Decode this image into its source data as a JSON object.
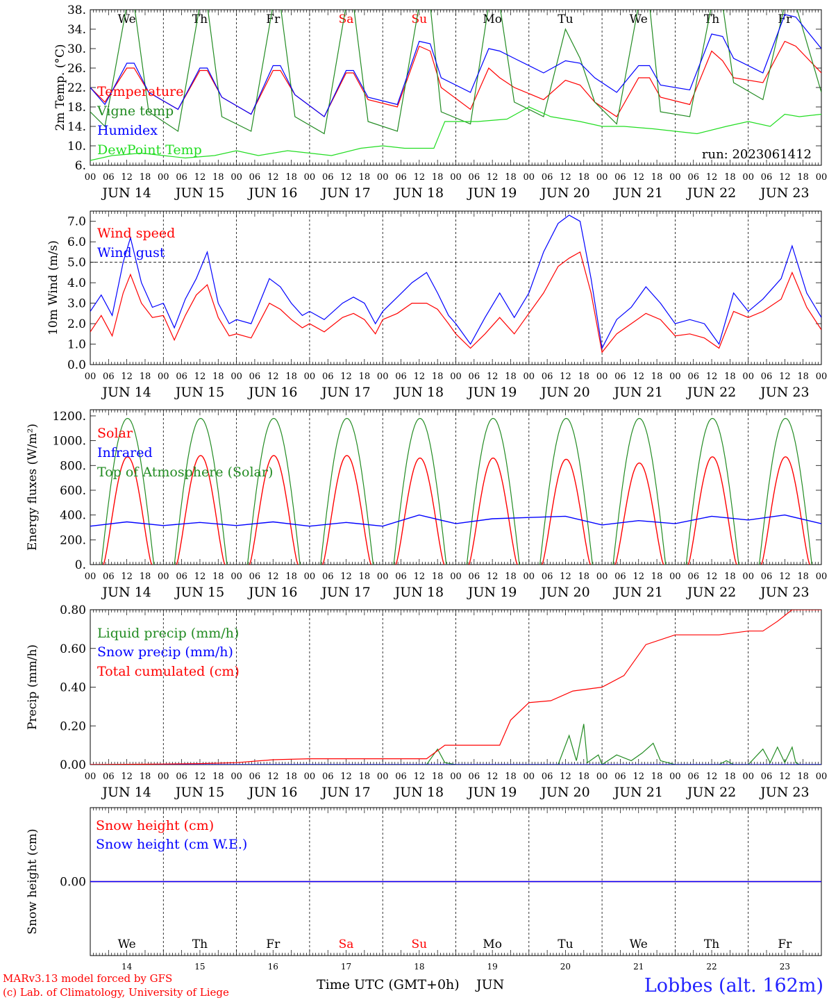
{
  "colors": {
    "temperature": "#ff0000",
    "vigne": "#228b22",
    "humidex": "#0000ff",
    "dewpoint": "#22dd22",
    "weekend": "#ff0000",
    "weekday": "#000000"
  },
  "x_axis": {
    "hour_labels": [
      "00",
      "06",
      "12",
      "18"
    ],
    "end_label": "00",
    "dates": [
      "JUN 14",
      "JUN 15",
      "JUN 16",
      "JUN 17",
      "JUN 18",
      "JUN 19",
      "JUN 20",
      "JUN 21",
      "JUN 22",
      "JUN 23"
    ],
    "weekdays": [
      "We",
      "Th",
      "Fr",
      "Sa",
      "Su",
      "Mo",
      "Tu",
      "We",
      "Th",
      "Fr"
    ],
    "weekend_days": [
      "Sa",
      "Su"
    ],
    "day_numbers": [
      "14",
      "15",
      "16",
      "17",
      "18",
      "19",
      "20",
      "21",
      "22",
      "23"
    ],
    "time_label": "Time UTC (GMT+0h)",
    "month_label": "JUN"
  },
  "footer": {
    "credit_line1": "MARv3.13 model forced by GFS",
    "credit_line2": "(c) Lab. of Climatology, University of Liege",
    "location": "Lobbes (alt. 162m)"
  },
  "chart_data": [
    {
      "type": "line",
      "ylabel": "2m Temp. (°C)",
      "ylim": [
        6,
        38
      ],
      "yticks": [
        "6.",
        "10.",
        "14.",
        "18.",
        "22.",
        "26.",
        "30.",
        "34.",
        "38."
      ],
      "annotation": "run: 2023061412",
      "x_unit": "days since JUN 14 00 UTC",
      "series": [
        {
          "name": "Temperature",
          "color": "#ff0000",
          "x": [
            0,
            0.2,
            0.5,
            0.6,
            0.8,
            1.2,
            1.5,
            1.6,
            1.8,
            2.2,
            2.5,
            2.6,
            2.8,
            3.2,
            3.5,
            3.6,
            3.8,
            4.2,
            4.5,
            4.65,
            4.8,
            5.2,
            5.45,
            5.6,
            5.8,
            6.2,
            6.5,
            6.7,
            6.9,
            7.2,
            7.5,
            7.65,
            7.8,
            8.2,
            8.5,
            8.65,
            8.8,
            9.2,
            9.5,
            9.65,
            10
          ],
          "y": [
            22,
            19,
            26,
            26,
            21,
            17.5,
            25.5,
            25.5,
            20,
            16.5,
            25.5,
            25.5,
            20.5,
            16,
            25,
            25,
            19.5,
            18,
            30.5,
            29.5,
            22,
            17.5,
            26,
            24,
            22,
            19.5,
            23.5,
            22.5,
            19,
            16,
            24,
            24,
            20,
            18.5,
            29.5,
            27.5,
            24,
            23,
            31.5,
            30.5,
            25
          ]
        },
        {
          "name": "Vigne temp",
          "color": "#228b22",
          "x": [
            0,
            0.2,
            0.5,
            0.6,
            0.8,
            1.2,
            1.5,
            1.6,
            1.8,
            2.2,
            2.5,
            2.6,
            2.8,
            3.2,
            3.5,
            3.6,
            3.8,
            4.2,
            4.5,
            4.65,
            4.8,
            5.2,
            5.45,
            5.6,
            5.8,
            6.2,
            6.5,
            6.7,
            6.9,
            7.2,
            7.5,
            7.65,
            7.8,
            8.2,
            8.5,
            8.65,
            8.8,
            9.2,
            9.5,
            9.65,
            10
          ],
          "y": [
            17,
            14,
            39,
            39,
            17,
            13,
            39,
            39,
            16,
            13,
            39,
            39,
            16,
            12.5,
            39,
            39,
            15,
            13,
            39,
            39,
            17,
            14.5,
            39,
            39,
            19,
            16,
            34,
            28,
            19,
            14.5,
            39,
            39,
            17,
            16,
            39,
            39,
            23,
            19.5,
            39,
            39,
            21
          ]
        },
        {
          "name": "Humidex",
          "color": "#0000ff",
          "x": [
            0,
            0.2,
            0.5,
            0.6,
            0.8,
            1.2,
            1.5,
            1.6,
            1.8,
            2.2,
            2.5,
            2.6,
            2.8,
            3.2,
            3.5,
            3.6,
            3.8,
            4.2,
            4.5,
            4.65,
            4.8,
            5.2,
            5.45,
            5.6,
            5.8,
            6.2,
            6.5,
            6.7,
            6.9,
            7.2,
            7.5,
            7.65,
            7.8,
            8.2,
            8.5,
            8.65,
            8.8,
            9.2,
            9.5,
            9.65,
            10
          ],
          "y": [
            22,
            18.5,
            27,
            27,
            21,
            17.5,
            26,
            26,
            20,
            16.5,
            26.5,
            26.5,
            20.5,
            16,
            25.5,
            25.5,
            20,
            18.5,
            31.5,
            31,
            24,
            21,
            30,
            29.5,
            28,
            25,
            27.5,
            27,
            24,
            21,
            26.5,
            26.5,
            22.5,
            21.5,
            33,
            32.5,
            28,
            25,
            37,
            36.5,
            30
          ]
        },
        {
          "name": "DewPoint Temp",
          "color": "#22dd22",
          "x": [
            0,
            0.3,
            0.7,
            1,
            1.3,
            1.7,
            2,
            2.3,
            2.7,
            3,
            3.3,
            3.7,
            4,
            4.3,
            4.7,
            4.85,
            5,
            5.3,
            5.7,
            6,
            6.3,
            6.7,
            7,
            7.3,
            7.7,
            8,
            8.3,
            8.7,
            9,
            9.3,
            9.5,
            9.7,
            10
          ],
          "y": [
            7,
            8,
            8.5,
            8,
            7.5,
            8,
            9,
            8,
            9,
            8.5,
            8,
            9.5,
            10,
            9.5,
            9.5,
            15,
            15,
            15,
            15.5,
            18,
            16,
            15,
            14,
            14,
            13.5,
            13,
            12.5,
            14,
            15,
            14,
            16.5,
            16,
            16.5
          ]
        }
      ]
    },
    {
      "type": "line",
      "ylabel": "10m Wind (m/s)",
      "ylim": [
        0,
        7.5
      ],
      "yticks": [
        "0.0",
        "1.0",
        "2.0",
        "3.0",
        "4.0",
        "5.0",
        "6.0",
        "7.0"
      ],
      "reference_line": 5,
      "x_unit": "days since JUN 14 00 UTC",
      "series": [
        {
          "name": "Wind speed",
          "color": "#ff0000",
          "x": [
            0,
            0.15,
            0.3,
            0.45,
            0.55,
            0.7,
            0.85,
            1,
            1.15,
            1.3,
            1.45,
            1.6,
            1.75,
            1.9,
            2,
            2.2,
            2.45,
            2.6,
            2.75,
            2.9,
            3,
            3.2,
            3.45,
            3.6,
            3.75,
            3.9,
            4,
            4.2,
            4.4,
            4.6,
            4.75,
            4.9,
            5,
            5.2,
            5.4,
            5.6,
            5.8,
            6,
            6.2,
            6.4,
            6.55,
            6.7,
            6.85,
            7,
            7.2,
            7.4,
            7.6,
            7.8,
            8,
            8.2,
            8.4,
            8.6,
            8.8,
            9,
            9.2,
            9.45,
            9.6,
            9.8,
            10
          ],
          "y": [
            1.6,
            2.4,
            1.4,
            3.5,
            4.4,
            3,
            2.3,
            2.4,
            1.2,
            2.4,
            3.4,
            3.9,
            2.3,
            1.4,
            1.5,
            1.3,
            3,
            2.7,
            2.2,
            1.8,
            2,
            1.6,
            2.3,
            2.5,
            2.2,
            1.5,
            2.2,
            2.5,
            3,
            3,
            2.7,
            2,
            1.5,
            0.8,
            1.5,
            2.3,
            1.5,
            2.5,
            3.5,
            4.8,
            5.2,
            5.5,
            3.5,
            0.6,
            1.5,
            2,
            2.5,
            2.2,
            1.4,
            1.5,
            1.3,
            0.8,
            2.6,
            2.3,
            2.6,
            3.2,
            4.5,
            2.8,
            1.7
          ]
        },
        {
          "name": "Wind gust",
          "color": "#0000ff",
          "x": [
            0,
            0.15,
            0.3,
            0.45,
            0.55,
            0.7,
            0.85,
            1,
            1.15,
            1.3,
            1.45,
            1.6,
            1.75,
            1.9,
            2,
            2.2,
            2.45,
            2.6,
            2.75,
            2.9,
            3,
            3.2,
            3.45,
            3.6,
            3.75,
            3.9,
            4,
            4.2,
            4.4,
            4.6,
            4.75,
            4.9,
            5,
            5.2,
            5.4,
            5.6,
            5.8,
            6,
            6.2,
            6.4,
            6.55,
            6.7,
            6.85,
            7,
            7.2,
            7.4,
            7.6,
            7.8,
            8,
            8.2,
            8.4,
            8.6,
            8.8,
            9,
            9.2,
            9.45,
            9.6,
            9.8,
            10
          ],
          "y": [
            2.6,
            3.4,
            2.4,
            5,
            6.2,
            4,
            2.8,
            3,
            1.8,
            3.2,
            4.2,
            5.5,
            3,
            2,
            2.2,
            2,
            4.2,
            3.8,
            3,
            2.4,
            2.6,
            2.2,
            3,
            3.3,
            3,
            2,
            2.6,
            3.3,
            4,
            4.5,
            3.5,
            2.4,
            2,
            1,
            2.3,
            3.5,
            2.3,
            3.5,
            5.5,
            6.9,
            7.3,
            7,
            4.2,
            0.8,
            2.2,
            2.8,
            3.8,
            3,
            2,
            2.2,
            2,
            1,
            3.5,
            2.6,
            3.2,
            4.2,
            5.8,
            3.5,
            2.3
          ]
        }
      ]
    },
    {
      "type": "line",
      "ylabel": "Energy fluxes (W/m²)",
      "ylim": [
        0,
        1250
      ],
      "yticks": [
        "0.",
        "200.",
        "400.",
        "600.",
        "800.",
        "1000.",
        "1200."
      ],
      "x_unit": "days since JUN 14 00 UTC",
      "diurnal": {
        "toa_peak": 1180,
        "toa_rise": 0.15,
        "toa_set": 0.87,
        "solar_rise": 0.18,
        "solar_set": 0.84,
        "solar_peaks": [
          870,
          880,
          880,
          880,
          860,
          860,
          850,
          820,
          870,
          870
        ]
      },
      "series": [
        {
          "name": "Solar",
          "color": "#ff0000"
        },
        {
          "name": "Infrared",
          "color": "#0000ff",
          "x": [
            0,
            0.5,
            1,
            1.5,
            2,
            2.5,
            3,
            3.5,
            4,
            4.5,
            5,
            5.5,
            6,
            6.5,
            7,
            7.5,
            8,
            8.5,
            9,
            9.5,
            10
          ],
          "y": [
            310,
            345,
            315,
            340,
            315,
            345,
            310,
            340,
            310,
            400,
            330,
            370,
            380,
            390,
            320,
            355,
            330,
            390,
            360,
            400,
            330
          ]
        },
        {
          "name": "Top of Atmosphere (Solar)",
          "color": "#228b22"
        }
      ]
    },
    {
      "type": "line",
      "ylabel": "Precip (mm/h)",
      "ylim": [
        0,
        0.8
      ],
      "yticks": [
        "0.00",
        "0.20",
        "0.40",
        "0.60",
        "0.80"
      ],
      "x_unit": "days since JUN 14 00 UTC",
      "series": [
        {
          "name": "Liquid precip (mm/h)",
          "color": "#228b22",
          "x": [
            0,
            4.6,
            4.75,
            4.85,
            5,
            6.4,
            6.55,
            6.65,
            6.75,
            6.8,
            6.95,
            7,
            7.2,
            7.4,
            7.55,
            7.7,
            7.8,
            8,
            8.6,
            8.7,
            8.8,
            9,
            9.2,
            9.3,
            9.4,
            9.5,
            9.6,
            9.65,
            9.7,
            10
          ],
          "y": [
            0,
            0,
            0.08,
            0.01,
            0,
            0,
            0.15,
            0.02,
            0.21,
            0.01,
            0.05,
            0,
            0.05,
            0.02,
            0.06,
            0.11,
            0.02,
            0,
            0,
            0.02,
            0,
            0,
            0.08,
            0.01,
            0.09,
            0.01,
            0.09,
            0.01,
            0,
            0
          ]
        },
        {
          "name": "Snow precip (mm/h)",
          "color": "#0000ff",
          "x": [
            0,
            10
          ],
          "y": [
            0,
            0
          ]
        },
        {
          "name": "Total cumulated (cm)",
          "color": "#ff0000",
          "x": [
            0,
            1,
            1.5,
            2,
            2.5,
            3,
            4,
            4.6,
            4.85,
            5,
            5.6,
            5.75,
            6,
            6.3,
            6.6,
            7,
            7.3,
            7.6,
            8,
            8.6,
            9,
            9.2,
            9.4,
            9.6,
            10
          ],
          "y": [
            0,
            0.003,
            0.005,
            0.01,
            0.025,
            0.03,
            0.03,
            0.03,
            0.1,
            0.1,
            0.1,
            0.23,
            0.32,
            0.33,
            0.38,
            0.4,
            0.46,
            0.62,
            0.67,
            0.67,
            0.69,
            0.69,
            0.74,
            0.8,
            0.8
          ]
        }
      ]
    },
    {
      "type": "line",
      "ylabel": "Snow height (cm)",
      "yticks": [
        "0.00"
      ],
      "x_unit": "days since JUN 14 00 UTC",
      "series": [
        {
          "name": "Snow height (cm)",
          "color": "#ff0000",
          "x": [
            0,
            10
          ],
          "y": [
            0,
            0
          ]
        },
        {
          "name": "Snow height (cm W.E.)",
          "color": "#0000ff",
          "x": [
            0,
            10
          ],
          "y": [
            0,
            0
          ]
        }
      ]
    }
  ]
}
